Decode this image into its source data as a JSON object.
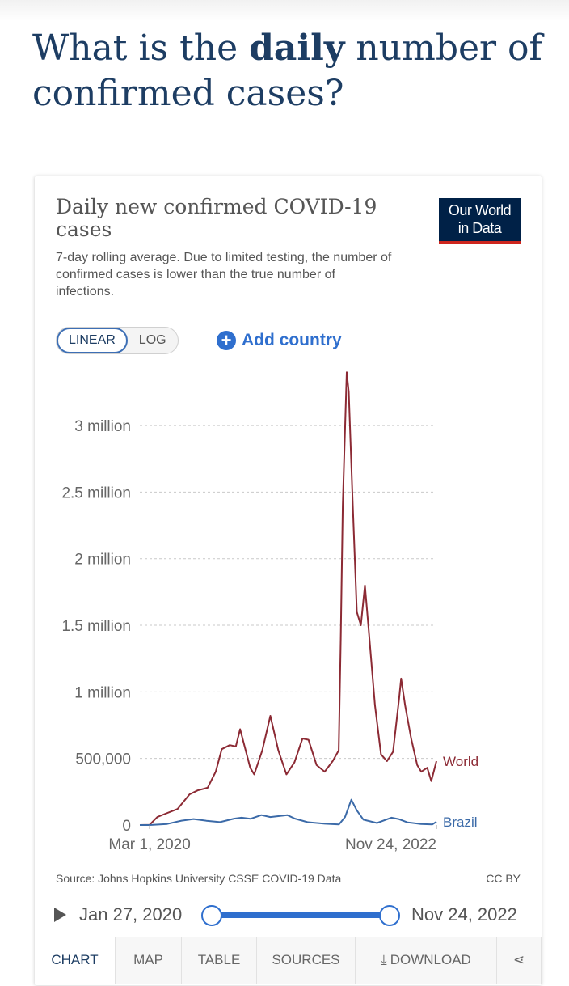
{
  "page": {
    "heading_pre": "What is the ",
    "heading_bold": "daily",
    "heading_post": " number of confirmed cases?"
  },
  "card": {
    "logo_line1": "Our World",
    "logo_line2": "in Data",
    "scale_options": [
      "LINEAR",
      "LOG"
    ],
    "selected_scale": "LINEAR",
    "add_country_label": "Add country",
    "source": "Source: Johns Hopkins University CSSE COVID-19 Data",
    "license": "CC BY"
  },
  "timeline": {
    "start": "Jan 27, 2020",
    "end": "Nov 24, 2022"
  },
  "tabs": [
    "CHART",
    "MAP",
    "TABLE",
    "SOURCES",
    "DOWNLOAD"
  ],
  "active_tab": "CHART",
  "colors": {
    "world": "#8c2a34",
    "brazil": "#3b6aa8",
    "accent": "#2f6fce",
    "logo_bg": "#002147",
    "logo_bar": "#ce261e"
  },
  "icons": {
    "add": "plus-circle-icon",
    "play": "play-icon",
    "download": "download-icon",
    "share": "share-icon"
  },
  "chart_data": {
    "type": "line",
    "title": "Daily new confirmed COVID-19 cases",
    "subtitle": "7-day rolling average. Due to limited testing, the number of confirmed cases is lower than the true number of infections.",
    "xlabel": "",
    "ylabel": "",
    "x_range": [
      "2020-01-27",
      "2022-11-24"
    ],
    "x_ticks": [
      "Mar 1, 2020",
      "Nov 24, 2022"
    ],
    "y_ticks": [
      {
        "value": 0,
        "label": "0"
      },
      {
        "value": 500000,
        "label": "500,000"
      },
      {
        "value": 1000000,
        "label": "1 million"
      },
      {
        "value": 1500000,
        "label": "1.5 million"
      },
      {
        "value": 2000000,
        "label": "2 million"
      },
      {
        "value": 2500000,
        "label": "2.5 million"
      },
      {
        "value": 3000000,
        "label": "3 million"
      }
    ],
    "ylim": [
      0,
      3450000
    ],
    "grid": true,
    "legend": "end-of-line labels",
    "series": [
      {
        "name": "World",
        "points": [
          [
            "2020-01-27",
            0
          ],
          [
            "2020-03-01",
            2000
          ],
          [
            "2020-03-28",
            60000
          ],
          [
            "2020-04-25",
            85000
          ],
          [
            "2020-06-06",
            120000
          ],
          [
            "2020-07-18",
            230000
          ],
          [
            "2020-08-15",
            260000
          ],
          [
            "2020-09-19",
            280000
          ],
          [
            "2020-10-17",
            400000
          ],
          [
            "2020-11-07",
            570000
          ],
          [
            "2020-12-05",
            600000
          ],
          [
            "2020-12-26",
            590000
          ],
          [
            "2021-01-10",
            720000
          ],
          [
            "2021-02-14",
            430000
          ],
          [
            "2021-02-28",
            380000
          ],
          [
            "2021-03-28",
            560000
          ],
          [
            "2021-04-25",
            820000
          ],
          [
            "2021-05-23",
            560000
          ],
          [
            "2021-06-20",
            380000
          ],
          [
            "2021-07-18",
            470000
          ],
          [
            "2021-08-15",
            650000
          ],
          [
            "2021-09-05",
            640000
          ],
          [
            "2021-10-03",
            450000
          ],
          [
            "2021-10-31",
            400000
          ],
          [
            "2021-11-28",
            480000
          ],
          [
            "2021-12-19",
            560000
          ],
          [
            "2021-12-26",
            1400000
          ],
          [
            "2022-01-02",
            2400000
          ],
          [
            "2022-01-16",
            3400000
          ],
          [
            "2022-01-23",
            3250000
          ],
          [
            "2022-02-06",
            2400000
          ],
          [
            "2022-02-20",
            1600000
          ],
          [
            "2022-03-06",
            1500000
          ],
          [
            "2022-03-20",
            1800000
          ],
          [
            "2022-04-03",
            1450000
          ],
          [
            "2022-04-24",
            900000
          ],
          [
            "2022-05-15",
            530000
          ],
          [
            "2022-06-05",
            480000
          ],
          [
            "2022-06-26",
            550000
          ],
          [
            "2022-07-17",
            950000
          ],
          [
            "2022-07-24",
            1100000
          ],
          [
            "2022-08-07",
            900000
          ],
          [
            "2022-08-28",
            650000
          ],
          [
            "2022-09-18",
            450000
          ],
          [
            "2022-10-02",
            400000
          ],
          [
            "2022-10-23",
            430000
          ],
          [
            "2022-11-06",
            330000
          ],
          [
            "2022-11-24",
            480000
          ]
        ]
      },
      {
        "name": "Brazil",
        "points": [
          [
            "2020-01-27",
            0
          ],
          [
            "2020-03-01",
            0
          ],
          [
            "2020-05-01",
            8000
          ],
          [
            "2020-06-20",
            33000
          ],
          [
            "2020-08-01",
            45000
          ],
          [
            "2020-09-15",
            32000
          ],
          [
            "2020-11-01",
            22000
          ],
          [
            "2020-12-20",
            48000
          ],
          [
            "2021-01-15",
            55000
          ],
          [
            "2021-02-15",
            47000
          ],
          [
            "2021-03-25",
            75000
          ],
          [
            "2021-04-25",
            60000
          ],
          [
            "2021-06-23",
            75000
          ],
          [
            "2021-07-20",
            48000
          ],
          [
            "2021-09-01",
            22000
          ],
          [
            "2021-11-01",
            10000
          ],
          [
            "2021-12-20",
            4000
          ],
          [
            "2022-01-10",
            60000
          ],
          [
            "2022-02-01",
            190000
          ],
          [
            "2022-02-20",
            110000
          ],
          [
            "2022-03-15",
            40000
          ],
          [
            "2022-05-01",
            15000
          ],
          [
            "2022-06-20",
            55000
          ],
          [
            "2022-07-15",
            45000
          ],
          [
            "2022-08-15",
            20000
          ],
          [
            "2022-10-01",
            8000
          ],
          [
            "2022-11-10",
            5000
          ],
          [
            "2022-11-24",
            25000
          ]
        ]
      }
    ]
  }
}
